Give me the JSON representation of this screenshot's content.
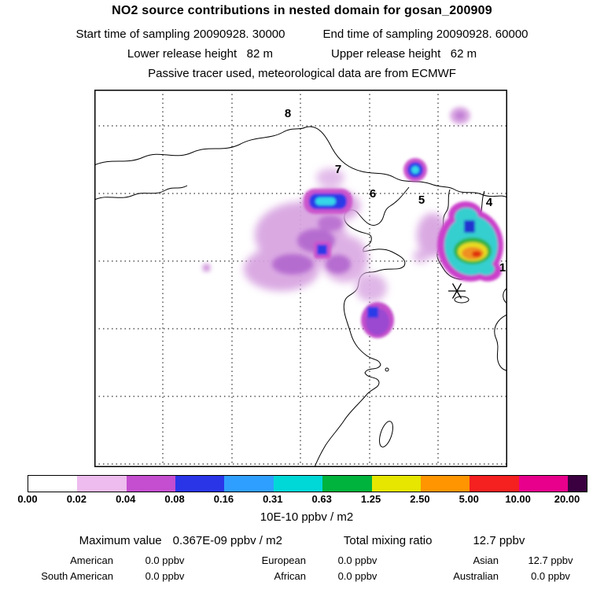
{
  "header": {
    "title": "NO2 source contributions in nested domain for gosan_200909",
    "sampling_start": "Start time of sampling 20090928. 30000",
    "sampling_end": "End time of sampling 20090928. 60000",
    "lower_release": "Lower release height   82 m",
    "upper_release": "Upper release height   62 m",
    "tracer_info": "Passive tracer used, meteorological data are from ECMWF"
  },
  "map": {
    "markers": [
      {
        "label": "8"
      },
      {
        "label": "7"
      },
      {
        "label": "6"
      },
      {
        "label": "5"
      },
      {
        "label": "4"
      },
      {
        "label": "1"
      }
    ],
    "receptor_symbol": "*"
  },
  "colorbar": {
    "ticks": [
      "0.00",
      "0.02",
      "0.04",
      "0.08",
      "0.16",
      "0.31",
      "0.63",
      "1.25",
      "2.50",
      "5.00",
      "10.00",
      "20.00"
    ],
    "band_colors": [
      "#ffffff",
      "#eebcee",
      "#c44ecf",
      "#2a35e8",
      "#2f9fff",
      "#00d8d8",
      "#00b33c",
      "#e6e600",
      "#ff9500",
      "#f52020",
      "#e8008c",
      "#3a0040"
    ],
    "units": "10E-10 ppbv / m2"
  },
  "stats": {
    "max_label": "Maximum value",
    "max_value": "0.367E-09 ppbv / m2",
    "total_label": "Total mixing ratio",
    "total_value": "12.7 ppbv",
    "regions": [
      {
        "name": "American",
        "value": "0.0 ppbv"
      },
      {
        "name": "European",
        "value": "0.0 ppbv"
      },
      {
        "name": "Asian",
        "value": "12.7 ppbv"
      },
      {
        "name": "South American",
        "value": "0.0 ppbv"
      },
      {
        "name": "African",
        "value": "0.0 ppbv"
      },
      {
        "name": "Australian",
        "value": "0.0 ppbv"
      }
    ]
  },
  "chart_data": {
    "type": "heatmap",
    "title": "NO2 source contributions in nested domain for gosan_200909",
    "subtitle": [
      "Start time of sampling 20090928. 30000",
      "End time of sampling 20090928. 60000",
      "Lower release height 82 m",
      "Upper release height 62 m",
      "Passive tracer used, meteorological data are from ECMWF"
    ],
    "colorbar_levels": [
      0.0,
      0.02,
      0.04,
      0.08,
      0.16,
      0.31,
      0.63,
      1.25,
      2.5,
      5.0,
      10.0,
      20.0
    ],
    "colorbar_units": "10E-10 ppbv / m2",
    "maximum_value": "0.367E-09 ppbv / m2",
    "total_mixing_ratio_ppbv": 12.7,
    "region_contributions_ppbv": {
      "American": 0.0,
      "European": 0.0,
      "Asian": 12.7,
      "South American": 0.0,
      "African": 0.0,
      "Australian": 0.0
    },
    "map_annotations": {
      "trajectory_hour_markers_visible": [
        "8",
        "7",
        "6",
        "5",
        "4",
        "1"
      ],
      "receptor_marker": "asterisk near Jeju/Gosan",
      "high_value_plume": "multicolor plume (magenta/cyan/green/yellow/orange) over southern Korea",
      "secondary_plumes": "purple/magenta plumes over northeast China, Yellow Sea and east China coast"
    },
    "legend_position": "bottom colorbar",
    "grid": "dashed lat/lon grid"
  }
}
